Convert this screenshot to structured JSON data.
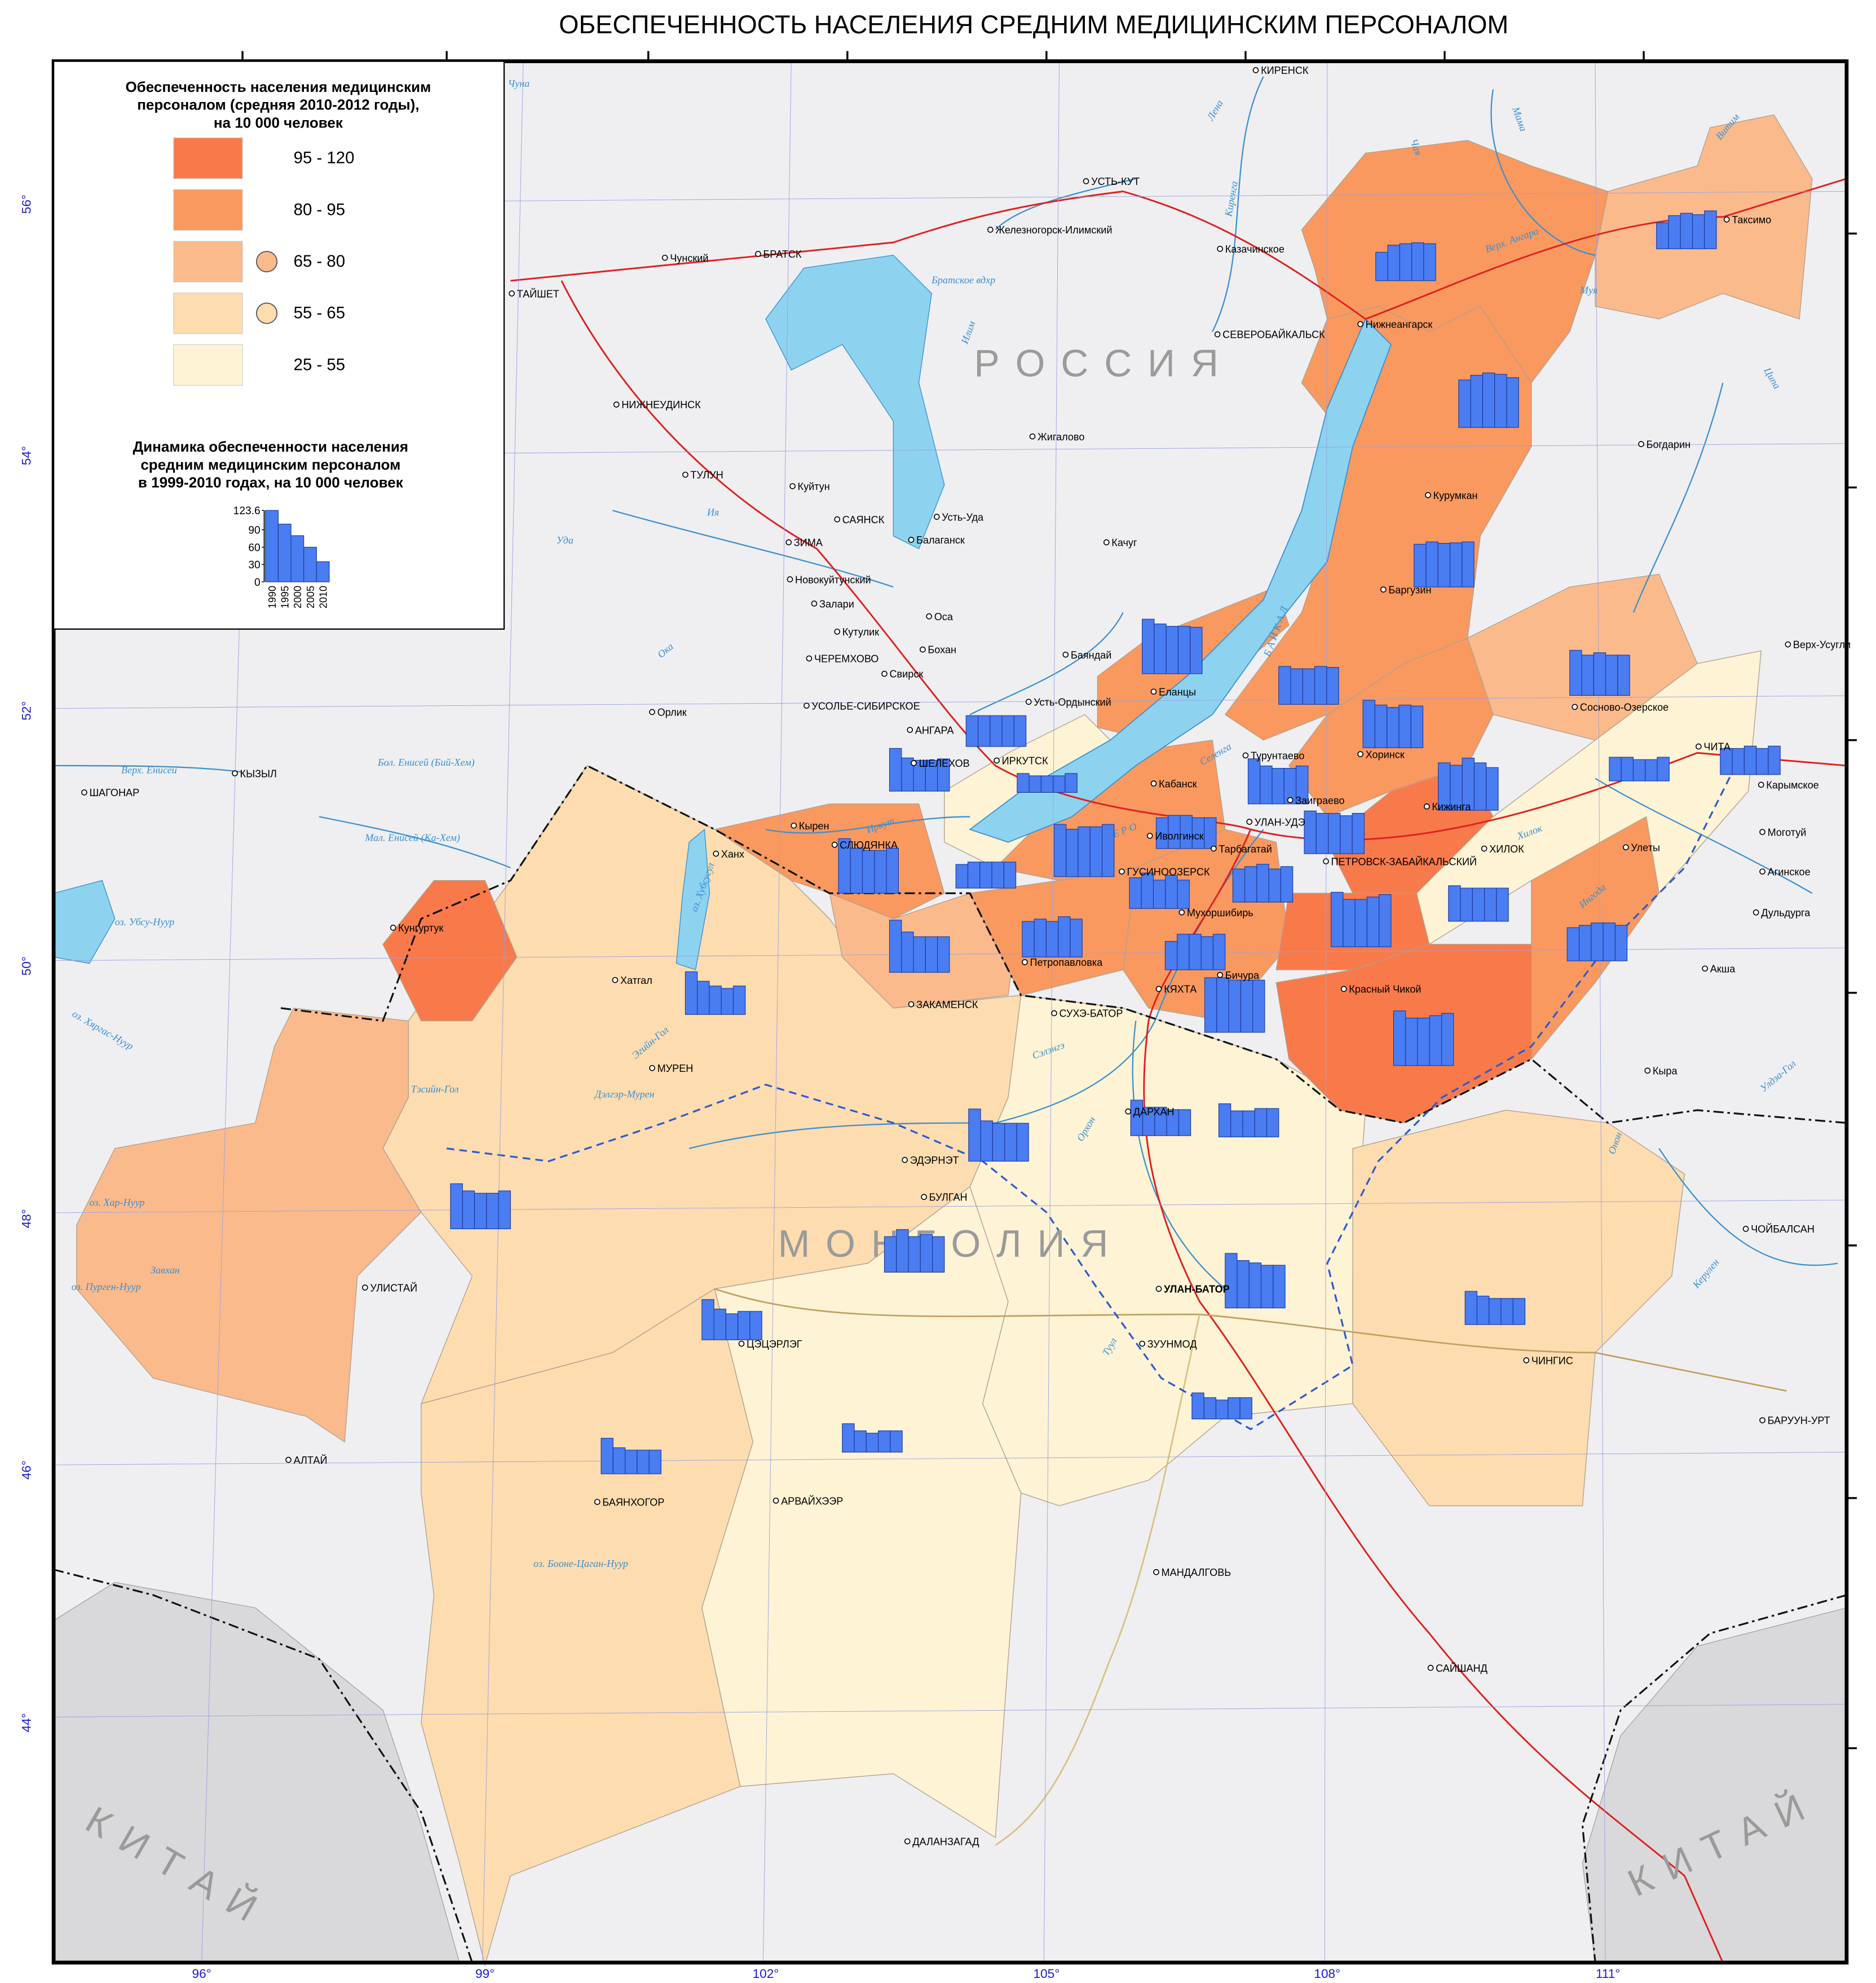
{
  "title": "ОБЕСПЕЧЕННОСТЬ НАСЕЛЕНИЯ СРЕДНИМ МЕДИЦИНСКИМ ПЕРСОНАЛОМ",
  "legend": {
    "title_lines": [
      "Обеспеченность населения медицинским",
      "персоналом (средняя 2010-2012 годы),",
      "на 10 000 человек"
    ],
    "classes": [
      {
        "label": "95 - 120",
        "color": "#f87a4a"
      },
      {
        "label": "80 - 95",
        "color": "#f9995f"
      },
      {
        "label": "65 - 80",
        "color": "#fbba8c"
      },
      {
        "label": "55 - 65",
        "color": "#fddcb0"
      },
      {
        "label": "25 - 55",
        "color": "#fef3d4"
      }
    ],
    "dynamics_title_lines": [
      "Динамика обеспеченности населения",
      "средним медицинским персоналом",
      "в 1999-2010 годах, на 10 000 человек"
    ],
    "sample": {
      "categories": [
        "1990",
        "1995",
        "2000",
        "2005",
        "2010"
      ],
      "values": [
        123.6,
        100,
        80,
        60,
        35
      ],
      "ylim": [
        0,
        123.6
      ],
      "yticks": [
        0,
        30,
        60,
        90,
        123.6
      ]
    }
  },
  "country_labels": [
    "Р О С С И Я",
    "М О Н Г О Л И Я",
    "К И Т А Й",
    "К И Т А Й"
  ],
  "latitudes": [
    "56°",
    "54°",
    "52°",
    "50°",
    "48°",
    "46°",
    "44°"
  ],
  "longitudes": [
    "96°",
    "99°",
    "102°",
    "105°",
    "108°",
    "111°"
  ],
  "cities": [
    "КИРЕНСК",
    "УСТЬ-КУТ",
    "Железногорск-Илимский",
    "Чунский",
    "БРАТСК",
    "ТАЙШЕТ",
    "Казачинское",
    "СЕВЕРОБАЙКАЛЬСК",
    "Нижнеангарск",
    "Таксимо",
    "НИЖНЕУДИНСК",
    "Жигалово",
    "Богдарин",
    "Курумкан",
    "ТУЛУН",
    "Куйтун",
    "САЯНСК",
    "Усть-Уда",
    "Балаганск",
    "ЗИМА",
    "Качуг",
    "Новокуйтунский",
    "Баргузин",
    "Залари",
    "Кутулик",
    "Оса",
    "ЧЕРЕМХОВО",
    "Бохан",
    "Свирск",
    "Баяндай",
    "Верх-Усугли",
    "Еланцы",
    "УСОЛЬЕ-СИБИРСКОЕ",
    "Усть-Ордынский",
    "Сосново-Озерское",
    "КЫЗЫЛ",
    "Орлик",
    "АНГАРА",
    "ЧИТА",
    "ШЕЛЕХОВ",
    "ИРКУТСК",
    "Турунтаево",
    "Хоринск",
    "ШАГОНАР",
    "Кабанск",
    "Карымское",
    "Заиграево",
    "УЛАН-УДЭ",
    "Кырен",
    "СЛЮДЯНКА",
    "Иволгинск",
    "Тарбагатай",
    "Кижинга",
    "Моготуй",
    "ХИЛОК",
    "Улеты",
    "Ханх",
    "ПЕТРОВСК-ЗАБАЙКАЛЬСКИЙ",
    "ГУСИНООЗЕРСК",
    "Агинское",
    "Кунгуртук",
    "Мухоршибирь",
    "Дульдурга",
    "Хатгал",
    "Петропавловка",
    "Бичура",
    "Акша",
    "КЯХТА",
    "Красный Чикой",
    "ЗАКАМЕНСК",
    "СУХЭ-БАТОР",
    "МУРЕН",
    "Кыра",
    "ДАРХАН",
    "ЭДЭРНЭТ",
    "БУЛГАН",
    "ЧОЙБАЛСАН",
    "УЛИСТАЙ",
    "УЛАН-БАТОР",
    "ЗУУНМОД",
    "ЦЭЦЭРЛЭГ",
    "ЧИНГИС",
    "БАРУУН-УРТ",
    "АЛТАЙ",
    "БАЯНХОГОР",
    "АРВАЙХЭЭР",
    "МАНДАЛГОВЬ",
    "САЙШАНД",
    "ДАЛАНЗАГАД"
  ],
  "water_labels": [
    "Чуна",
    "Лена",
    "Чая",
    "Мама",
    "Витим",
    "Верх. Ангара",
    "Муя",
    "Ципа",
    "Киренга",
    "Илим",
    "Братское вдхр",
    "Ия",
    "Уда",
    "Ока",
    "Иркут",
    "Селенга",
    "Бол. Енисей (Бий-Хем)",
    "Мал. Енисей (Ка-Хем)",
    "Верх. Енисей",
    "оз. Убсу-Нуур",
    "оз. Хубсугул",
    "оз. Хяргас-Нуур",
    "оз. Хар-Нуур",
    "оз. Пурген-Нуур",
    "оз. Бооне-Цаган-Нуур",
    "Завхан",
    "Тэсийн-Гол",
    "Дэлгэр-Мурен",
    "Эгийн-Гол",
    "Сэлэнгэ",
    "Орхон",
    "Туул",
    "Керулен",
    "Онон",
    "Улдза-Гол",
    "Хилок",
    "Ингода",
    "Б А Й К А Л",
    "О З Е Р О"
  ],
  "charts": [
    {
      "values": [
        60,
        75,
        78,
        80,
        78
      ]
    },
    {
      "values": [
        55,
        70,
        75,
        72,
        80
      ]
    },
    {
      "values": [
        100,
        110,
        115,
        112,
        105
      ]
    },
    {
      "values": [
        90,
        95,
        92,
        93,
        95
      ]
    },
    {
      "values": [
        115,
        105,
        100,
        100,
        98
      ]
    },
    {
      "values": [
        80,
        75,
        75,
        80,
        78
      ]
    },
    {
      "values": [
        100,
        90,
        85,
        90,
        88
      ]
    },
    {
      "values": [
        95,
        85,
        90,
        85,
        85
      ]
    },
    {
      "values": [
        65,
        65,
        65,
        65,
        65
      ]
    },
    {
      "values": [
        90,
        70,
        65,
        65,
        68
      ]
    },
    {
      "values": [
        40,
        35,
        35,
        35,
        40
      ]
    },
    {
      "values": [
        50,
        50,
        45,
        45,
        50
      ]
    },
    {
      "values": [
        55,
        55,
        60,
        55,
        60
      ]
    },
    {
      "values": [
        100,
        95,
        110,
        100,
        90
      ]
    },
    {
      "values": [
        95,
        80,
        75,
        75,
        80
      ]
    },
    {
      "values": [
        65,
        70,
        70,
        65,
        65
      ]
    },
    {
      "values": [
        90,
        85,
        85,
        80,
        85
      ]
    },
    {
      "values": [
        115,
        95,
        90,
        90,
        95
      ]
    },
    {
      "values": [
        50,
        55,
        55,
        55,
        55
      ]
    },
    {
      "values": [
        110,
        100,
        105,
        105,
        110
      ]
    },
    {
      "values": [
        65,
        75,
        60,
        70,
        60
      ]
    },
    {
      "values": [
        70,
        75,
        80,
        70,
        75
      ]
    },
    {
      "values": [
        75,
        70,
        70,
        70,
        70
      ]
    },
    {
      "values": [
        115,
        100,
        100,
        105,
        110
      ]
    },
    {
      "values": [
        70,
        75,
        80,
        80,
        75
      ]
    },
    {
      "values": [
        110,
        85,
        75,
        75,
        75
      ]
    },
    {
      "values": [
        75,
        80,
        75,
        85,
        80
      ]
    },
    {
      "values": [
        60,
        75,
        75,
        70,
        75
      ]
    },
    {
      "values": [
        115,
        115,
        110,
        110,
        110
      ]
    },
    {
      "values": [
        90,
        70,
        60,
        55,
        60
      ]
    },
    {
      "values": [
        115,
        100,
        100,
        105,
        110
      ]
    },
    {
      "values": [
        110,
        85,
        80,
        80,
        80
      ]
    },
    {
      "values": [
        75,
        60,
        60,
        55,
        55
      ]
    },
    {
      "values": [
        70,
        55,
        55,
        60,
        60
      ]
    },
    {
      "values": [
        95,
        80,
        75,
        75,
        80
      ]
    },
    {
      "values": [
        75,
        90,
        75,
        80,
        75
      ]
    },
    {
      "values": [
        115,
        100,
        95,
        90,
        90
      ]
    },
    {
      "values": [
        70,
        60,
        55,
        55,
        55
      ]
    },
    {
      "values": [
        85,
        65,
        55,
        60,
        60
      ]
    },
    {
      "values": [
        55,
        45,
        40,
        45,
        45
      ]
    },
    {
      "values": [
        60,
        45,
        40,
        45,
        45
      ]
    },
    {
      "values": [
        75,
        55,
        50,
        50,
        50
      ]
    }
  ]
}
